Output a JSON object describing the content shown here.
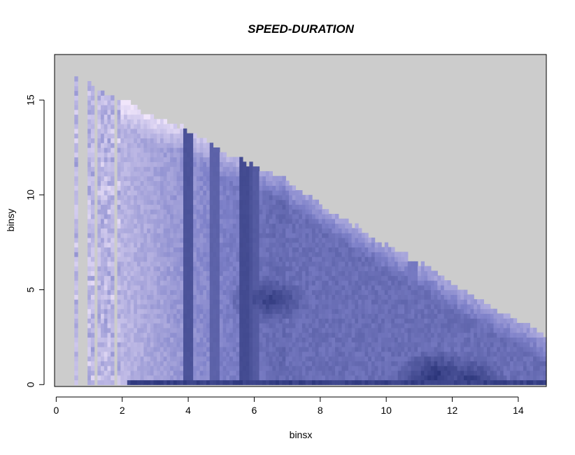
{
  "chart_data": {
    "type": "heatmap",
    "title": "SPEED-DURATION",
    "xlabel": "binsx",
    "ylabel": "binsy",
    "xlim": [
      -0.05,
      14.85
    ],
    "ylim": [
      -0.1,
      17.4
    ],
    "x_ticks": [
      0,
      2,
      4,
      6,
      8,
      10,
      12,
      14
    ],
    "y_ticks": [
      0,
      5,
      10,
      15
    ],
    "grid": false,
    "legend": "none",
    "background_color": "#cccccc",
    "color_scale": {
      "low": "#f1e6fb",
      "high": "#2a3479"
    },
    "x_range": [
      0.55,
      14.75
    ],
    "y_range": [
      0,
      16.4
    ],
    "boundary": [
      [
        0.55,
        16.4
      ],
      [
        1.5,
        15.3
      ],
      [
        2.0,
        15.0
      ],
      [
        3.0,
        14.0
      ],
      [
        4.0,
        13.4
      ],
      [
        5.0,
        12.3
      ],
      [
        6.0,
        11.5
      ],
      [
        7.0,
        10.7
      ],
      [
        8.0,
        9.5
      ],
      [
        9.0,
        8.4
      ],
      [
        10.0,
        7.3
      ],
      [
        11.0,
        6.4
      ],
      [
        12.0,
        5.2
      ],
      [
        13.0,
        4.3
      ],
      [
        14.0,
        3.4
      ],
      [
        14.75,
        2.5
      ]
    ],
    "gaps": [
      [
        0.7,
        0.95
      ],
      [
        1.12,
        1.28
      ],
      [
        1.72,
        1.88
      ]
    ],
    "features": {
      "bottom_band_intensity": 0.92,
      "dark_streak_columns": [
        [
          4.0,
          0.85
        ],
        [
          4.8,
          0.75
        ],
        [
          5.7,
          0.9
        ],
        [
          5.8,
          0.85
        ],
        [
          6.0,
          0.8
        ],
        [
          10.8,
          0.6
        ]
      ],
      "hot_spots": [
        [
          6.5,
          4.5,
          0.95
        ],
        [
          11.5,
          0.5,
          1.0
        ],
        [
          12.5,
          0.3,
          0.95
        ]
      ]
    }
  }
}
